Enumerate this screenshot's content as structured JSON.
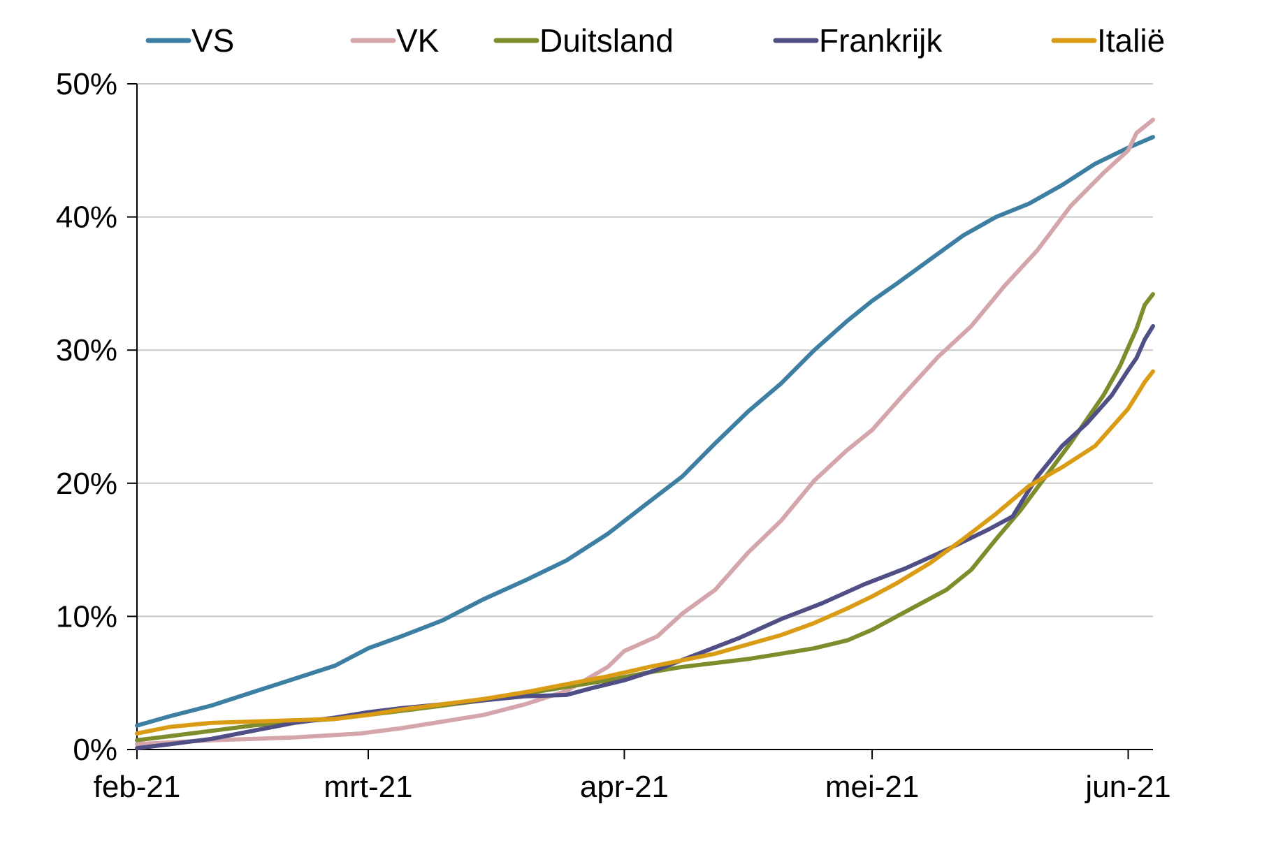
{
  "chart_data": {
    "type": "line",
    "title": "",
    "xlabel": "",
    "ylabel": "",
    "y_unit": "%",
    "ylim": [
      0,
      50
    ],
    "y_ticks": [
      0,
      10,
      20,
      30,
      40,
      50
    ],
    "y_tick_labels": [
      "0%",
      "10%",
      "20%",
      "30%",
      "40%",
      "50%"
    ],
    "x_ticks": [
      "2021-02-01",
      "2021-03-01",
      "2021-04-01",
      "2021-05-01",
      "2021-06-01"
    ],
    "x_tick_labels": [
      "feb-21",
      "mrt-21",
      "apr-21",
      "mei-21",
      "jun-21"
    ],
    "xlim": [
      "2021-02-01",
      "2021-06-04"
    ],
    "grid": "horizontal",
    "legend_position": "top",
    "series": [
      {
        "name": "VS",
        "color": "#3d7fa3",
        "points": [
          [
            "2021-02-01",
            1.8
          ],
          [
            "2021-02-05",
            2.5
          ],
          [
            "2021-02-10",
            3.3
          ],
          [
            "2021-02-15",
            4.3
          ],
          [
            "2021-02-20",
            5.3
          ],
          [
            "2021-02-25",
            6.3
          ],
          [
            "2021-03-01",
            7.6
          ],
          [
            "2021-03-05",
            8.5
          ],
          [
            "2021-03-10",
            9.7
          ],
          [
            "2021-03-15",
            11.3
          ],
          [
            "2021-03-20",
            12.7
          ],
          [
            "2021-03-25",
            14.2
          ],
          [
            "2021-03-30",
            16.2
          ],
          [
            "2021-04-04",
            18.6
          ],
          [
            "2021-04-08",
            20.5
          ],
          [
            "2021-04-12",
            23.0
          ],
          [
            "2021-04-16",
            25.4
          ],
          [
            "2021-04-20",
            27.5
          ],
          [
            "2021-04-24",
            30.0
          ],
          [
            "2021-04-28",
            32.2
          ],
          [
            "2021-05-01",
            33.7
          ],
          [
            "2021-05-04",
            35.0
          ],
          [
            "2021-05-08",
            36.8
          ],
          [
            "2021-05-12",
            38.6
          ],
          [
            "2021-05-16",
            40.0
          ],
          [
            "2021-05-20",
            41.0
          ],
          [
            "2021-05-24",
            42.4
          ],
          [
            "2021-05-28",
            44.0
          ],
          [
            "2021-06-01",
            45.2
          ],
          [
            "2021-06-04",
            46.0
          ]
        ]
      },
      {
        "name": "VK",
        "color": "#d4a5ab",
        "points": [
          [
            "2021-02-01",
            0.4
          ],
          [
            "2021-02-10",
            0.7
          ],
          [
            "2021-02-20",
            0.9
          ],
          [
            "2021-02-28",
            1.2
          ],
          [
            "2021-03-05",
            1.6
          ],
          [
            "2021-03-10",
            2.1
          ],
          [
            "2021-03-15",
            2.6
          ],
          [
            "2021-03-20",
            3.4
          ],
          [
            "2021-03-25",
            4.4
          ],
          [
            "2021-03-30",
            6.2
          ],
          [
            "2021-04-01",
            7.4
          ],
          [
            "2021-04-05",
            8.5
          ],
          [
            "2021-04-08",
            10.2
          ],
          [
            "2021-04-12",
            12.0
          ],
          [
            "2021-04-16",
            14.8
          ],
          [
            "2021-04-20",
            17.2
          ],
          [
            "2021-04-24",
            20.2
          ],
          [
            "2021-04-28",
            22.5
          ],
          [
            "2021-05-01",
            24.0
          ],
          [
            "2021-05-05",
            26.8
          ],
          [
            "2021-05-09",
            29.5
          ],
          [
            "2021-05-13",
            31.8
          ],
          [
            "2021-05-17",
            34.8
          ],
          [
            "2021-05-21",
            37.5
          ],
          [
            "2021-05-25",
            40.8
          ],
          [
            "2021-05-29",
            43.3
          ],
          [
            "2021-06-01",
            45.0
          ],
          [
            "2021-06-02",
            46.3
          ],
          [
            "2021-06-04",
            47.3
          ]
        ]
      },
      {
        "name": "Duitsland",
        "color": "#7f8c2c",
        "points": [
          [
            "2021-02-01",
            0.7
          ],
          [
            "2021-02-05",
            1.0
          ],
          [
            "2021-02-10",
            1.4
          ],
          [
            "2021-02-15",
            1.8
          ],
          [
            "2021-02-20",
            2.1
          ],
          [
            "2021-02-25",
            2.3
          ],
          [
            "2021-03-01",
            2.6
          ],
          [
            "2021-03-05",
            2.9
          ],
          [
            "2021-03-10",
            3.3
          ],
          [
            "2021-03-15",
            3.7
          ],
          [
            "2021-03-20",
            4.2
          ],
          [
            "2021-03-25",
            4.7
          ],
          [
            "2021-03-30",
            5.2
          ],
          [
            "2021-04-04",
            5.8
          ],
          [
            "2021-04-08",
            6.2
          ],
          [
            "2021-04-12",
            6.5
          ],
          [
            "2021-04-16",
            6.8
          ],
          [
            "2021-04-20",
            7.2
          ],
          [
            "2021-04-24",
            7.6
          ],
          [
            "2021-04-28",
            8.2
          ],
          [
            "2021-05-01",
            9.0
          ],
          [
            "2021-05-04",
            10.0
          ],
          [
            "2021-05-07",
            11.0
          ],
          [
            "2021-05-10",
            12.0
          ],
          [
            "2021-05-13",
            13.5
          ],
          [
            "2021-05-16",
            15.8
          ],
          [
            "2021-05-19",
            18.0
          ],
          [
            "2021-05-22",
            20.5
          ],
          [
            "2021-05-25",
            23.0
          ],
          [
            "2021-05-27",
            24.8
          ],
          [
            "2021-05-29",
            26.6
          ],
          [
            "2021-05-31",
            28.8
          ],
          [
            "2021-06-01",
            30.2
          ],
          [
            "2021-06-02",
            31.6
          ],
          [
            "2021-06-03",
            33.4
          ],
          [
            "2021-06-04",
            34.2
          ]
        ]
      },
      {
        "name": "Frankrijk",
        "color": "#4f4f86",
        "points": [
          [
            "2021-02-01",
            0.1
          ],
          [
            "2021-02-05",
            0.4
          ],
          [
            "2021-02-10",
            0.8
          ],
          [
            "2021-02-15",
            1.4
          ],
          [
            "2021-02-20",
            2.0
          ],
          [
            "2021-02-25",
            2.4
          ],
          [
            "2021-03-01",
            2.8
          ],
          [
            "2021-03-05",
            3.1
          ],
          [
            "2021-03-10",
            3.4
          ],
          [
            "2021-03-15",
            3.7
          ],
          [
            "2021-03-20",
            4.0
          ],
          [
            "2021-03-25",
            4.1
          ],
          [
            "2021-03-28",
            4.6
          ],
          [
            "2021-04-01",
            5.2
          ],
          [
            "2021-04-05",
            6.0
          ],
          [
            "2021-04-10",
            7.2
          ],
          [
            "2021-04-15",
            8.4
          ],
          [
            "2021-04-20",
            9.8
          ],
          [
            "2021-04-25",
            11.0
          ],
          [
            "2021-04-30",
            12.4
          ],
          [
            "2021-05-05",
            13.6
          ],
          [
            "2021-05-10",
            15.0
          ],
          [
            "2021-05-15",
            16.5
          ],
          [
            "2021-05-18",
            17.5
          ],
          [
            "2021-05-21",
            20.5
          ],
          [
            "2021-05-24",
            22.8
          ],
          [
            "2021-05-27",
            24.5
          ],
          [
            "2021-05-30",
            26.6
          ],
          [
            "2021-06-01",
            28.5
          ],
          [
            "2021-06-02",
            29.4
          ],
          [
            "2021-06-03",
            30.8
          ],
          [
            "2021-06-04",
            31.8
          ]
        ]
      },
      {
        "name": "Italië",
        "color": "#d99c14",
        "points": [
          [
            "2021-02-01",
            1.2
          ],
          [
            "2021-02-05",
            1.7
          ],
          [
            "2021-02-10",
            2.0
          ],
          [
            "2021-02-15",
            2.1
          ],
          [
            "2021-02-20",
            2.2
          ],
          [
            "2021-02-25",
            2.3
          ],
          [
            "2021-03-01",
            2.6
          ],
          [
            "2021-03-05",
            3.0
          ],
          [
            "2021-03-10",
            3.4
          ],
          [
            "2021-03-15",
            3.8
          ],
          [
            "2021-03-20",
            4.3
          ],
          [
            "2021-03-25",
            4.9
          ],
          [
            "2021-03-30",
            5.5
          ],
          [
            "2021-04-04",
            6.2
          ],
          [
            "2021-04-08",
            6.7
          ],
          [
            "2021-04-12",
            7.2
          ],
          [
            "2021-04-16",
            7.9
          ],
          [
            "2021-04-20",
            8.6
          ],
          [
            "2021-04-24",
            9.5
          ],
          [
            "2021-04-28",
            10.6
          ],
          [
            "2021-05-01",
            11.5
          ],
          [
            "2021-05-04",
            12.5
          ],
          [
            "2021-05-08",
            14.0
          ],
          [
            "2021-05-12",
            15.8
          ],
          [
            "2021-05-16",
            17.7
          ],
          [
            "2021-05-20",
            19.8
          ],
          [
            "2021-05-24",
            21.2
          ],
          [
            "2021-05-28",
            22.8
          ],
          [
            "2021-06-01",
            25.6
          ],
          [
            "2021-06-02",
            26.6
          ],
          [
            "2021-06-03",
            27.6
          ],
          [
            "2021-06-04",
            28.4
          ]
        ]
      }
    ]
  }
}
